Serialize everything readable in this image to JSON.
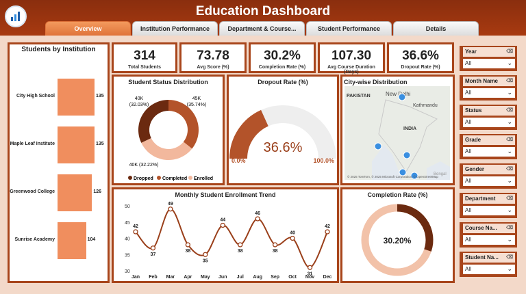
{
  "app": {
    "title": "Education Dashboard",
    "logo_icon": "dashboard-logo-icon"
  },
  "tabs": [
    {
      "label": "Overview",
      "active": true
    },
    {
      "label": "Institution Performance"
    },
    {
      "label": "Department & Course..."
    },
    {
      "label": "Student Performance"
    },
    {
      "label": "Details"
    }
  ],
  "kpis": [
    {
      "value": "314",
      "label": "Total Students"
    },
    {
      "value": "73.78",
      "label": "Avg Score (%)"
    },
    {
      "value": "30.2%",
      "label": "Completion Rate (%)"
    },
    {
      "value": "107.30",
      "label": "Avg Course Duration (Days)"
    },
    {
      "value": "36.6%",
      "label": "Dropout Rate (%)"
    }
  ],
  "students_by_institution": {
    "title": "Students by Institution",
    "items": [
      {
        "label": "City High School",
        "value": "135"
      },
      {
        "label": "Maple Leaf Institute",
        "value": "135"
      },
      {
        "label": "Greenwood College",
        "value": "126"
      },
      {
        "label": "Sunrise Academy",
        "value": "104"
      }
    ]
  },
  "status_distribution": {
    "title": "Student Status Distribution",
    "labels": [
      "40K\n(32.03%)",
      "45K\n(35.74%)",
      "40K (32.22%)"
    ],
    "legend": [
      "Dropped",
      "Completed",
      "Enrolled"
    ],
    "colors": [
      "#6b2a10",
      "#b3532a",
      "#f2b89d"
    ]
  },
  "dropout": {
    "title": "Dropout Rate (%)",
    "value": "36.6%",
    "min": "0.0%",
    "max": "100.0%"
  },
  "map": {
    "title": "City-wise Distribution",
    "labels": [
      "PAKISTAN",
      "New Delhi",
      "Kathmandu",
      "INDIA",
      "Bengal"
    ],
    "copyright": "© 2025 TomTom, © 2025 Microsoft Corporation, © OpenStreetMap"
  },
  "trend": {
    "title": "Monthly Student Enrollment Trend",
    "y_ticks": [
      "50",
      "45",
      "40",
      "35",
      "30"
    ]
  },
  "completion": {
    "title": "Completion Rate (%)",
    "value": "30.20%"
  },
  "slicers": [
    {
      "label": "Year",
      "value": "All"
    },
    {
      "label": "Month Name",
      "value": "All"
    },
    {
      "label": "Status",
      "value": "All"
    },
    {
      "label": "Grade",
      "value": "All"
    },
    {
      "label": "Gender",
      "value": "All"
    },
    {
      "label": "Department",
      "value": "All"
    },
    {
      "label": "Course Na...",
      "value": "All"
    },
    {
      "label": "Student Na...",
      "value": "All"
    }
  ],
  "chart_data": [
    {
      "type": "bar",
      "title": "Students by Institution",
      "categories": [
        "City High School",
        "Maple Leaf Institute",
        "Greenwood College",
        "Sunrise Academy"
      ],
      "values": [
        135,
        135,
        126,
        104
      ]
    },
    {
      "type": "pie",
      "title": "Student Status Distribution",
      "categories": [
        "Dropped",
        "Completed",
        "Enrolled"
      ],
      "values": [
        32.03,
        35.74,
        32.22
      ]
    },
    {
      "type": "line",
      "title": "Monthly Student Enrollment Trend",
      "categories": [
        "Jan",
        "Feb",
        "Mar",
        "Apr",
        "May",
        "Jun",
        "Jul",
        "Aug",
        "Sep",
        "Oct",
        "Nov",
        "Dec"
      ],
      "values": [
        42,
        37,
        49,
        38,
        35,
        44,
        38,
        46,
        38,
        40,
        31,
        42
      ],
      "ylim": [
        30,
        50
      ]
    }
  ]
}
